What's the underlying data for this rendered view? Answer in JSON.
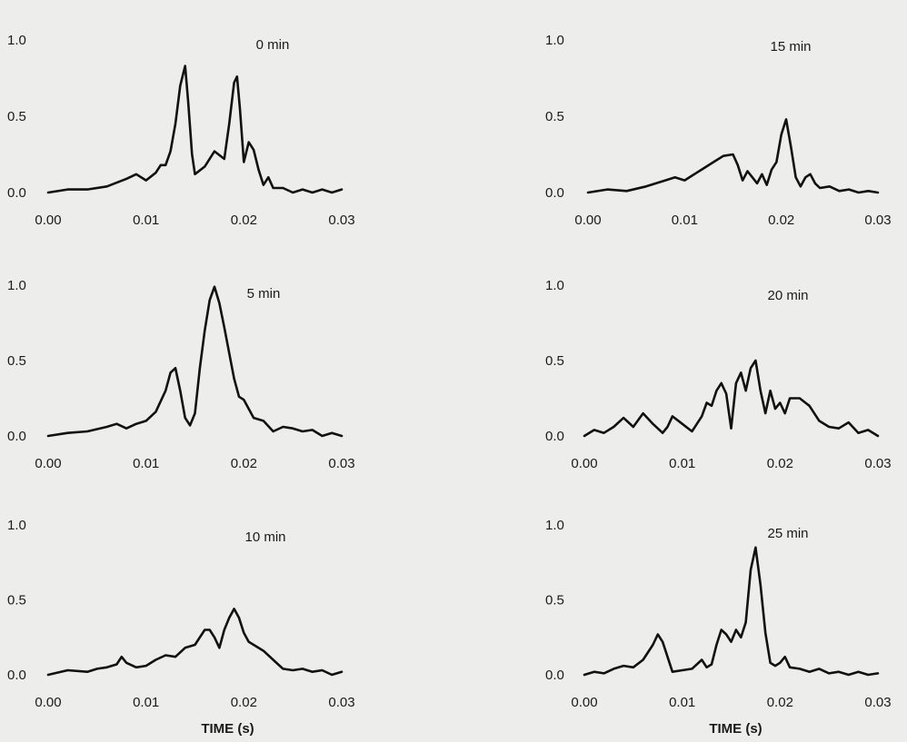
{
  "chart_data": [
    {
      "type": "line",
      "title": "0 min",
      "xlabel": "",
      "xticks": [
        "0.00",
        "0.01",
        "0.02",
        "0.03"
      ],
      "yticks": [
        "0.0",
        "0.5",
        "1.0"
      ],
      "xlim": [
        0,
        0.03
      ],
      "ylim": [
        0,
        1.0
      ],
      "x": [
        0.0,
        0.002,
        0.004,
        0.006,
        0.008,
        0.009,
        0.01,
        0.011,
        0.0115,
        0.012,
        0.0125,
        0.013,
        0.0135,
        0.014,
        0.0143,
        0.0147,
        0.015,
        0.016,
        0.017,
        0.018,
        0.0185,
        0.019,
        0.0193,
        0.0196,
        0.02,
        0.0205,
        0.021,
        0.0215,
        0.022,
        0.0225,
        0.023,
        0.024,
        0.025,
        0.026,
        0.027,
        0.028,
        0.029,
        0.03
      ],
      "y": [
        0.0,
        0.02,
        0.02,
        0.04,
        0.09,
        0.12,
        0.08,
        0.13,
        0.18,
        0.18,
        0.27,
        0.45,
        0.7,
        0.83,
        0.6,
        0.25,
        0.12,
        0.17,
        0.27,
        0.22,
        0.45,
        0.72,
        0.76,
        0.55,
        0.2,
        0.33,
        0.28,
        0.15,
        0.05,
        0.1,
        0.03,
        0.03,
        0.0,
        0.02,
        0.0,
        0.02,
        0.0,
        0.02
      ]
    },
    {
      "type": "line",
      "title": "15 min",
      "xlabel": "",
      "xticks": [
        "0.00",
        "0.01",
        "0.02",
        "0.03"
      ],
      "yticks": [
        "0.0",
        "0.5",
        "1.0"
      ],
      "xlim": [
        0,
        0.03
      ],
      "ylim": [
        0,
        1.0
      ],
      "x": [
        0.0,
        0.002,
        0.004,
        0.006,
        0.008,
        0.009,
        0.01,
        0.011,
        0.012,
        0.013,
        0.014,
        0.015,
        0.0155,
        0.016,
        0.0165,
        0.017,
        0.0175,
        0.018,
        0.0185,
        0.019,
        0.0195,
        0.02,
        0.0205,
        0.021,
        0.0215,
        0.022,
        0.0225,
        0.023,
        0.0235,
        0.024,
        0.025,
        0.026,
        0.027,
        0.028,
        0.029,
        0.03
      ],
      "y": [
        0.0,
        0.02,
        0.01,
        0.04,
        0.08,
        0.1,
        0.08,
        0.12,
        0.16,
        0.2,
        0.24,
        0.25,
        0.18,
        0.08,
        0.14,
        0.1,
        0.06,
        0.12,
        0.05,
        0.15,
        0.2,
        0.38,
        0.48,
        0.3,
        0.1,
        0.04,
        0.1,
        0.12,
        0.06,
        0.03,
        0.04,
        0.01,
        0.02,
        0.0,
        0.01,
        0.0
      ]
    },
    {
      "type": "line",
      "title": "5 min",
      "xlabel": "",
      "xticks": [
        "0.00",
        "0.01",
        "0.02",
        "0.03"
      ],
      "yticks": [
        "0.0",
        "0.5",
        "1.0"
      ],
      "xlim": [
        0,
        0.03
      ],
      "ylim": [
        0,
        1.0
      ],
      "x": [
        0.0,
        0.002,
        0.004,
        0.006,
        0.007,
        0.008,
        0.009,
        0.01,
        0.011,
        0.012,
        0.0125,
        0.013,
        0.0135,
        0.014,
        0.0145,
        0.015,
        0.0155,
        0.016,
        0.0165,
        0.017,
        0.0175,
        0.018,
        0.0185,
        0.019,
        0.0195,
        0.02,
        0.021,
        0.022,
        0.023,
        0.024,
        0.025,
        0.026,
        0.027,
        0.028,
        0.029,
        0.03
      ],
      "y": [
        0.0,
        0.02,
        0.03,
        0.06,
        0.08,
        0.05,
        0.08,
        0.1,
        0.16,
        0.3,
        0.42,
        0.45,
        0.3,
        0.12,
        0.07,
        0.15,
        0.45,
        0.7,
        0.9,
        0.99,
        0.88,
        0.72,
        0.55,
        0.38,
        0.26,
        0.24,
        0.12,
        0.1,
        0.03,
        0.06,
        0.05,
        0.03,
        0.04,
        0.0,
        0.02,
        0.0
      ]
    },
    {
      "type": "line",
      "title": "20 min",
      "xlabel": "",
      "xticks": [
        "0.00",
        "0.01",
        "0.02",
        "0.03"
      ],
      "yticks": [
        "0.0",
        "0.5",
        "1.0"
      ],
      "xlim": [
        0,
        0.03
      ],
      "ylim": [
        0,
        1.0
      ],
      "x": [
        0.0,
        0.001,
        0.002,
        0.003,
        0.004,
        0.005,
        0.006,
        0.007,
        0.008,
        0.0085,
        0.009,
        0.01,
        0.011,
        0.012,
        0.0125,
        0.013,
        0.0135,
        0.014,
        0.0145,
        0.015,
        0.0155,
        0.016,
        0.0165,
        0.017,
        0.0175,
        0.018,
        0.0185,
        0.019,
        0.0195,
        0.02,
        0.0205,
        0.021,
        0.022,
        0.023,
        0.024,
        0.025,
        0.026,
        0.027,
        0.028,
        0.029,
        0.03
      ],
      "y": [
        0.0,
        0.04,
        0.02,
        0.06,
        0.12,
        0.06,
        0.15,
        0.08,
        0.02,
        0.06,
        0.13,
        0.08,
        0.03,
        0.13,
        0.22,
        0.2,
        0.3,
        0.35,
        0.28,
        0.05,
        0.35,
        0.42,
        0.3,
        0.45,
        0.5,
        0.3,
        0.15,
        0.3,
        0.18,
        0.22,
        0.15,
        0.25,
        0.25,
        0.2,
        0.1,
        0.06,
        0.05,
        0.09,
        0.02,
        0.04,
        0.0
      ]
    },
    {
      "type": "line",
      "title": "10 min",
      "xlabel": "TIME (s)",
      "xticks": [
        "0.00",
        "0.01",
        "0.02",
        "0.03"
      ],
      "yticks": [
        "0.0",
        "0.5",
        "1.0"
      ],
      "xlim": [
        0,
        0.03
      ],
      "ylim": [
        0,
        1.0
      ],
      "x": [
        0.0,
        0.002,
        0.004,
        0.005,
        0.006,
        0.007,
        0.0075,
        0.008,
        0.009,
        0.01,
        0.011,
        0.012,
        0.013,
        0.014,
        0.015,
        0.016,
        0.0165,
        0.017,
        0.0175,
        0.018,
        0.0185,
        0.019,
        0.0195,
        0.02,
        0.0205,
        0.021,
        0.022,
        0.023,
        0.024,
        0.025,
        0.026,
        0.027,
        0.028,
        0.029,
        0.03
      ],
      "y": [
        0.0,
        0.03,
        0.02,
        0.04,
        0.05,
        0.07,
        0.12,
        0.08,
        0.05,
        0.06,
        0.1,
        0.13,
        0.12,
        0.18,
        0.2,
        0.3,
        0.3,
        0.25,
        0.18,
        0.3,
        0.38,
        0.44,
        0.38,
        0.28,
        0.22,
        0.2,
        0.16,
        0.1,
        0.04,
        0.03,
        0.04,
        0.02,
        0.03,
        0.0,
        0.02
      ]
    },
    {
      "type": "line",
      "title": "25 min",
      "xlabel": "TIME (s)",
      "xticks": [
        "0.00",
        "0.01",
        "0.02",
        "0.03"
      ],
      "yticks": [
        "0.0",
        "0.5",
        "1.0"
      ],
      "xlim": [
        0,
        0.03
      ],
      "ylim": [
        0,
        1.0
      ],
      "x": [
        0.0,
        0.001,
        0.002,
        0.003,
        0.004,
        0.005,
        0.006,
        0.007,
        0.0075,
        0.008,
        0.0085,
        0.009,
        0.01,
        0.011,
        0.012,
        0.0125,
        0.013,
        0.0135,
        0.014,
        0.0145,
        0.015,
        0.0155,
        0.016,
        0.0165,
        0.017,
        0.0175,
        0.018,
        0.0185,
        0.019,
        0.0195,
        0.02,
        0.0205,
        0.021,
        0.022,
        0.023,
        0.024,
        0.025,
        0.026,
        0.027,
        0.028,
        0.029,
        0.03
      ],
      "y": [
        0.0,
        0.02,
        0.01,
        0.04,
        0.06,
        0.05,
        0.1,
        0.2,
        0.27,
        0.22,
        0.12,
        0.02,
        0.03,
        0.04,
        0.1,
        0.05,
        0.07,
        0.2,
        0.3,
        0.27,
        0.22,
        0.3,
        0.25,
        0.35,
        0.7,
        0.85,
        0.6,
        0.28,
        0.08,
        0.06,
        0.08,
        0.12,
        0.05,
        0.04,
        0.02,
        0.04,
        0.01,
        0.02,
        0.0,
        0.02,
        0.0,
        0.01
      ]
    }
  ]
}
